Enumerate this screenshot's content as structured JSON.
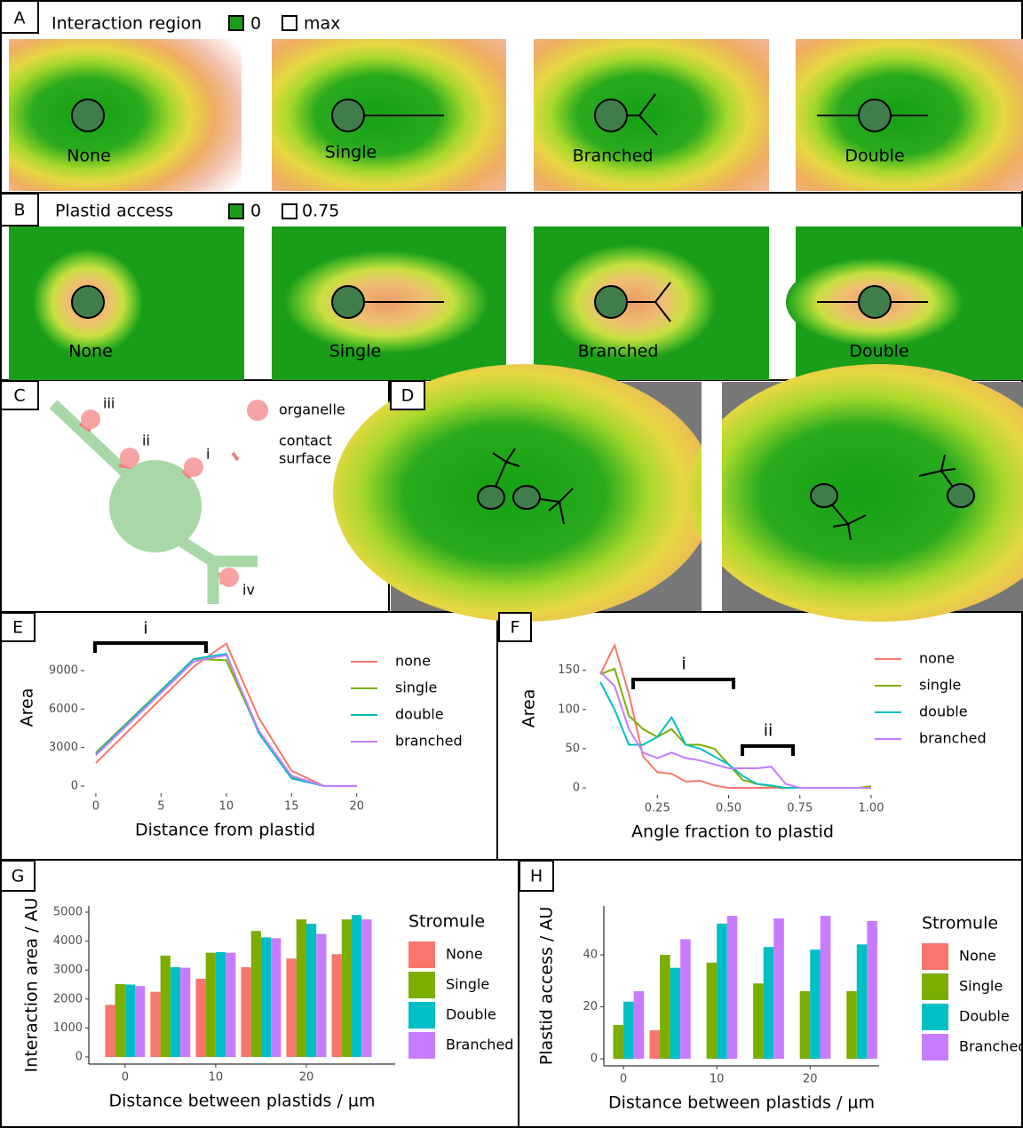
{
  "panels": {
    "A": {
      "label": "A",
      "title": "Interaction region",
      "legend": [
        "0",
        "max"
      ],
      "tiles": [
        "None",
        "Single",
        "Branched",
        "Double"
      ]
    },
    "B": {
      "label": "B",
      "title": "Plastid access",
      "legend": [
        "0",
        "0.75"
      ],
      "tiles": [
        "None",
        "Single",
        "Branched",
        "Double"
      ]
    },
    "C": {
      "label": "C",
      "markers": [
        "iii",
        "ii",
        "i",
        "iv"
      ],
      "legend": [
        "organelle",
        "contact",
        "surface"
      ]
    },
    "D": {
      "label": "D"
    }
  },
  "chart_data": [
    {
      "type": "line",
      "panel": "E",
      "x_label": "Distance from plastid",
      "y_label": "Area",
      "annotations": [
        "i"
      ],
      "x": [
        0,
        7.5,
        10,
        12.5,
        15,
        17.5,
        20
      ],
      "series": [
        {
          "name": "none",
          "color": "#F8766D",
          "values": [
            1800,
            9300,
            11100,
            5300,
            1200,
            0,
            0
          ]
        },
        {
          "name": "single",
          "color": "#7CAE00",
          "values": [
            2600,
            9900,
            9800,
            4200,
            700,
            0,
            0
          ]
        },
        {
          "name": "double",
          "color": "#00BFC4",
          "values": [
            2500,
            9900,
            10300,
            4100,
            600,
            0,
            0
          ]
        },
        {
          "name": "branched",
          "color": "#C77CFF",
          "values": [
            2400,
            9700,
            10200,
            4300,
            800,
            0,
            0
          ]
        }
      ],
      "xlim": [
        -0.88,
        20.7
      ],
      "xticks": [
        0,
        5,
        10,
        15,
        20
      ],
      "ylim": [
        -550,
        12800
      ],
      "yticks": [
        0,
        3000,
        6000,
        9000
      ],
      "grid": false,
      "axis_lines": false
    },
    {
      "type": "line",
      "panel": "F",
      "x_label": "Angle fraction to plastid",
      "y_label": "Area",
      "annotations": [
        "i",
        "ii"
      ],
      "x": [
        0.05,
        0.1,
        0.15,
        0.2,
        0.25,
        0.3,
        0.35,
        0.4,
        0.45,
        0.5,
        0.55,
        0.6,
        0.65,
        0.7,
        0.75,
        0.8,
        0.85,
        0.9,
        0.95,
        1.0
      ],
      "series": [
        {
          "name": "none",
          "color": "#F8766D",
          "values": [
            145,
            182,
            120,
            40,
            20,
            18,
            8,
            9,
            3,
            0,
            0,
            0,
            0,
            0,
            0,
            0,
            0,
            0,
            0,
            0
          ]
        },
        {
          "name": "single",
          "color": "#7CAE00",
          "values": [
            145,
            152,
            92,
            75,
            65,
            75,
            55,
            55,
            50,
            30,
            10,
            5,
            2,
            0,
            0,
            0,
            0,
            0,
            0,
            2
          ]
        },
        {
          "name": "double",
          "color": "#00BFC4",
          "values": [
            135,
            100,
            55,
            55,
            65,
            90,
            55,
            50,
            40,
            30,
            15,
            5,
            3,
            0,
            0,
            0,
            0,
            0,
            0,
            0
          ]
        },
        {
          "name": "branched",
          "color": "#C77CFF",
          "values": [
            148,
            130,
            75,
            45,
            38,
            45,
            38,
            35,
            30,
            25,
            25,
            25,
            27,
            5,
            0,
            0,
            0,
            0,
            0,
            0
          ]
        }
      ],
      "xlim": [
        0,
        1.028
      ],
      "xticks": [
        0.25,
        {
          "value": 0.5,
          "label": "0.50"
        },
        0.75,
        {
          "value": 1,
          "label": "1.00"
        }
      ],
      "ylim": [
        -9,
        212
      ],
      "yticks": [
        0,
        50,
        100,
        150
      ],
      "grid": false,
      "axis_lines": false
    },
    {
      "type": "bar",
      "panel": "G",
      "x_label": "Distance between plastids / µm",
      "y_label": "Interaction area / AU",
      "legend_title": "Stromule",
      "x": [
        0,
        5,
        10,
        15,
        20,
        25
      ],
      "series": [
        {
          "name": "None",
          "color": "#F8766D",
          "values": [
            1800,
            2250,
            2700,
            3100,
            3400,
            3550
          ]
        },
        {
          "name": "Single",
          "color": "#7CAE00",
          "values": [
            2520,
            3500,
            3600,
            4350,
            4750,
            4750
          ]
        },
        {
          "name": "Double",
          "color": "#00BFC4",
          "values": [
            2500,
            3100,
            3620,
            4130,
            4600,
            4900
          ]
        },
        {
          "name": "Branched",
          "color": "#C77CFF",
          "values": [
            2450,
            3080,
            3600,
            4100,
            4250,
            4750
          ]
        }
      ],
      "xlim": [
        -4,
        29.8
      ],
      "xticks": [
        0,
        10,
        20
      ],
      "ylim": [
        -245,
        5215
      ],
      "yticks": [
        0,
        1000,
        2000,
        3000,
        4000,
        5000
      ],
      "grid": false,
      "axis_lines": true
    },
    {
      "type": "bar",
      "panel": "H",
      "x_label": "Distance between plastids / µm",
      "y_label": "Plastid access / AU",
      "legend_title": "Stromule",
      "x": [
        0,
        5,
        10,
        15,
        20,
        25
      ],
      "series": [
        {
          "name": "None",
          "color": "#F8766D",
          "values": [
            0,
            11,
            0,
            0,
            0,
            0
          ]
        },
        {
          "name": "Single",
          "color": "#7CAE00",
          "values": [
            13,
            40,
            37,
            29,
            26,
            26
          ]
        },
        {
          "name": "Double",
          "color": "#00BFC4",
          "values": [
            22,
            35,
            52,
            43,
            42,
            44
          ]
        },
        {
          "name": "Branched",
          "color": "#C77CFF",
          "values": [
            26,
            46,
            55,
            54,
            55,
            53
          ]
        }
      ],
      "xlim": [
        -2.1,
        27.4
      ],
      "xticks": [
        0,
        10,
        20
      ],
      "ylim": [
        -2.7,
        58.8
      ],
      "yticks": [
        0,
        20,
        40
      ],
      "grid": false,
      "axis_lines": true
    }
  ]
}
